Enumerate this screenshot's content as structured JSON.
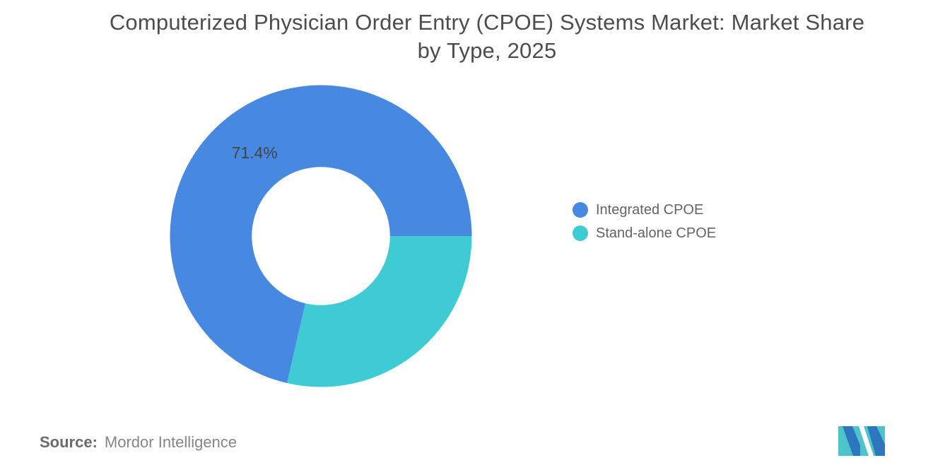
{
  "title": {
    "line1": "Computerized Physician Order Entry (CPOE) Systems Market: Market Share",
    "line2": "by Type, 2025",
    "full": "Computerized Physician Order Entry (CPOE) Systems Market: Market Share by Type, 2025"
  },
  "chart_data": {
    "type": "pie",
    "subtype": "donut",
    "title": "Computerized Physician Order Entry (CPOE) Systems Market: Market Share by Type, 2025",
    "categories": [
      "Integrated CPOE",
      "Stand-alone CPOE"
    ],
    "values": [
      71.4,
      28.6
    ],
    "unit": "%",
    "colors": [
      "#4789E1",
      "#3FCBD3"
    ],
    "slice_labels": [
      "71.4%",
      ""
    ],
    "start_angle_deg": 257.04,
    "direction": "clockwise",
    "inner_radius_ratio": 0.458,
    "legend_position": "right"
  },
  "source": {
    "prefix": "Source:",
    "value": "Mordor Intelligence"
  },
  "logo": {
    "name": "mordor-intelligence-logo",
    "colors": {
      "teal": "#4EC4CA",
      "blue": "#2B76BC",
      "gap": "#ffffff"
    }
  }
}
